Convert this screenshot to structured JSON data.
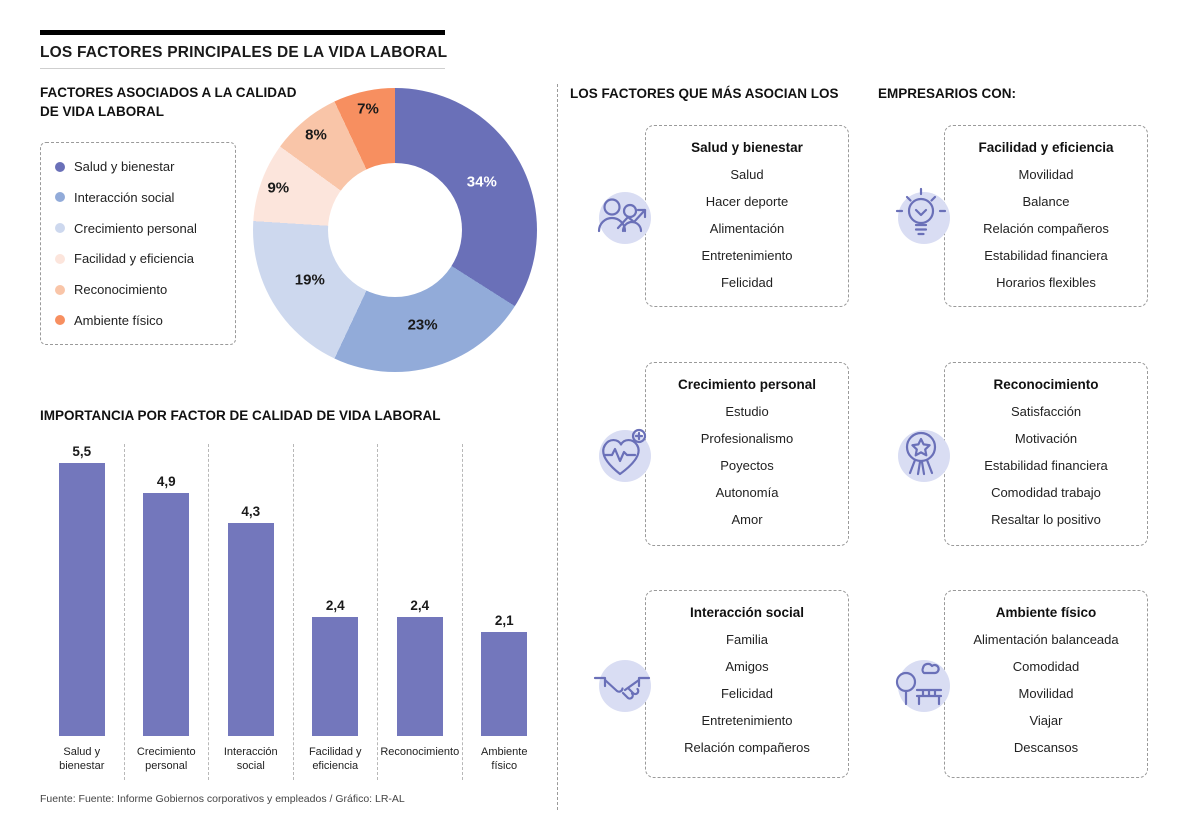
{
  "header": {
    "title": "LOS FACTORES PRINCIPALES DE LA VIDA LABORAL"
  },
  "donut_section": {
    "title": "FACTORES ASOCIADOS A LA CALIDAD\nDE VIDA LABORAL"
  },
  "bar_section": {
    "title": "IMPORTANCIA POR FACTOR DE CALIDAD DE VIDA LABORAL"
  },
  "right_section": {
    "header_left": "LOS FACTORES QUE MÁS ASOCIAN LOS",
    "header_right": "EMPRESARIOS CON:"
  },
  "source": "Fuente: Fuente: Informe Gobiernos corporativos y empleados / Gráfico: LR-AL",
  "colors": {
    "bar": "#7377bc",
    "icon_stroke": "#6a70b8",
    "icon_bg": "#d9ddf3",
    "title_rule": "#000000"
  },
  "chart_data": [
    {
      "type": "pie",
      "subtype": "donut",
      "title": "FACTORES ASOCIADOS A LA CALIDAD DE VIDA LABORAL",
      "labels": [
        "Salud y bienestar",
        "Interacción social",
        "Crecimiento personal",
        "Facilidad y eficiencia",
        "Reconocimiento",
        "Ambiente físico"
      ],
      "values": [
        34,
        23,
        19,
        9,
        8,
        7
      ],
      "unit": "%",
      "pct_labels": [
        "34%",
        "23%",
        "19%",
        "9%",
        "8%",
        "7%"
      ],
      "colors": [
        "#6a70b8",
        "#92abd9",
        "#cdd8ee",
        "#fce5dc",
        "#f9c5a8",
        "#f78f60"
      ],
      "pct_label_colors": [
        "#ffffff",
        "#1a1a1a",
        "#1a1a1a",
        "#1a1a1a",
        "#1a1a1a",
        "#1a1a1a"
      ],
      "legend_position": "left",
      "start_angle_deg": 0,
      "direction": "clockwise"
    },
    {
      "type": "bar",
      "title": "IMPORTANCIA POR FACTOR DE CALIDAD DE VIDA LABORAL",
      "categories": [
        "Salud y\nbienestar",
        "Crecimiento\npersonal",
        "Interacción\nsocial",
        "Facilidad y\neficiencia",
        "Reconocimiento",
        "Ambiente\nfísico"
      ],
      "values": [
        5.5,
        4.9,
        4.3,
        2.4,
        2.4,
        2.1
      ],
      "value_labels": [
        "5,5",
        "4,9",
        "4,3",
        "2,4",
        "2,4",
        "2,1"
      ],
      "bar_color": "#7377bc",
      "ylim": [
        0,
        5.5
      ],
      "grid": "dashed-vertical-separators"
    }
  ],
  "factors": [
    {
      "title": "Salud y bienestar",
      "icon": "people-growth-icon",
      "items": [
        "Salud",
        "Hacer deporte",
        "Alimentación",
        "Entretenimiento",
        "Felicidad"
      ]
    },
    {
      "title": "Facilidad y eficiencia",
      "icon": "lightbulb-icon",
      "items": [
        "Movilidad",
        "Balance",
        "Relación compañeros",
        "Estabilidad financiera",
        "Horarios flexibles"
      ]
    },
    {
      "title": "Crecimiento personal",
      "icon": "heart-pulse-icon",
      "items": [
        "Estudio",
        "Profesionalismo",
        "Poyectos",
        "Autonomía",
        "Amor"
      ]
    },
    {
      "title": "Reconocimiento",
      "icon": "medal-icon",
      "items": [
        "Satisfacción",
        "Motivación",
        "Estabilidad financiera",
        "Comodidad trabajo",
        "Resaltar lo positivo"
      ]
    },
    {
      "title": "Interacción social",
      "icon": "handshake-icon",
      "items": [
        "Familia",
        "Amigos",
        "Felicidad",
        "Entretenimiento",
        "Relación compañeros"
      ]
    },
    {
      "title": "Ambiente físico",
      "icon": "park-icon",
      "items": [
        "Alimentación balanceada",
        "Comodidad",
        "Movilidad",
        "Viajar",
        "Descansos"
      ]
    }
  ]
}
